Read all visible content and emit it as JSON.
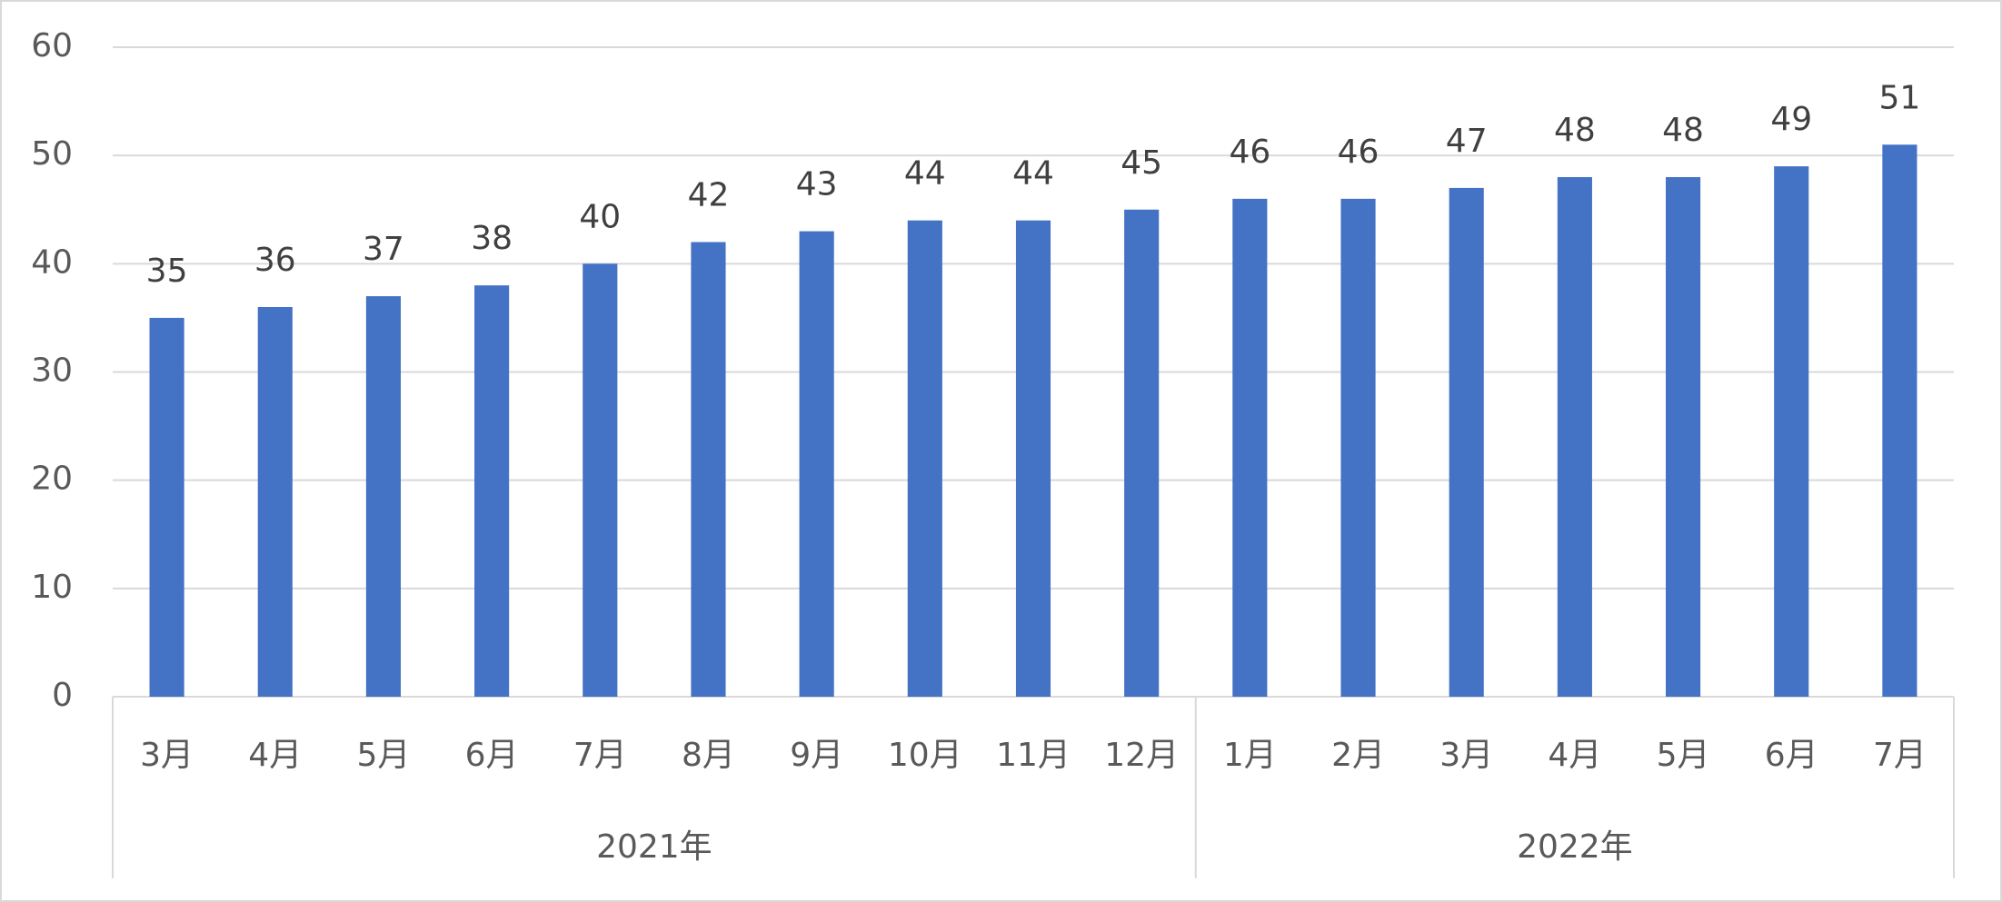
{
  "chart_data": {
    "type": "bar",
    "groups": [
      {
        "label": "2021年",
        "categories": [
          "3月",
          "4月",
          "5月",
          "6月",
          "7月",
          "8月",
          "9月",
          "10月",
          "11月",
          "12月"
        ]
      },
      {
        "label": "2022年",
        "categories": [
          "1月",
          "2月",
          "3月",
          "4月",
          "5月",
          "6月",
          "7月"
        ]
      }
    ],
    "values": [
      35,
      36,
      37,
      38,
      40,
      42,
      43,
      44,
      44,
      45,
      46,
      46,
      47,
      48,
      48,
      49,
      51
    ],
    "color": "#4472c4",
    "ylim": [
      0,
      60
    ],
    "yticks": [
      0,
      10,
      20,
      30,
      40,
      50,
      60
    ],
    "grid": true
  }
}
